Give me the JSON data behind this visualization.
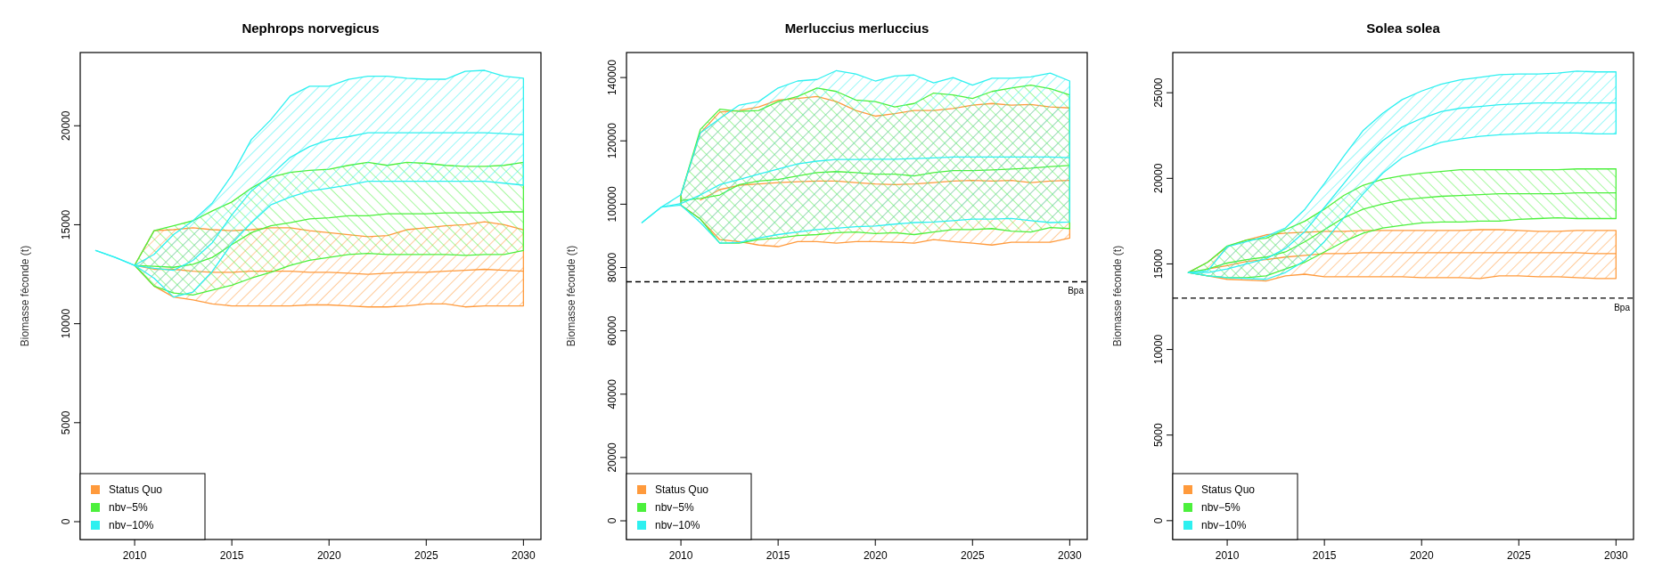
{
  "chart_data": [
    {
      "type": "line",
      "title": "Nephrops norvegicus",
      "ylabel": "Biomasse féconde (t)",
      "x": [
        2008,
        2009,
        2010,
        2011,
        2012,
        2013,
        2014,
        2015,
        2016,
        2017,
        2018,
        2019,
        2020,
        2021,
        2022,
        2023,
        2024,
        2025,
        2026,
        2027,
        2028,
        2029,
        2030
      ],
      "xlim": [
        2007.2,
        2030.9
      ],
      "xticks": [
        2010,
        2015,
        2020,
        2025,
        2030
      ],
      "ylim": [
        -900,
        23700
      ],
      "yticks": [
        0,
        5000,
        10000,
        15000,
        20000
      ],
      "grid": false,
      "legend": "bottom left",
      "marker": "none",
      "line_style": "solid",
      "series": [
        {
          "name": "Status Quo",
          "color": "#ff9a3c",
          "values": [
            null,
            null,
            12950,
            12750,
            12750,
            12650,
            12600,
            12600,
            12650,
            12650,
            12650,
            12600,
            12600,
            12550,
            12500,
            12550,
            12600,
            12600,
            12650,
            12700,
            12750,
            12700,
            12650
          ],
          "lower": [
            null,
            null,
            12950,
            11900,
            11350,
            11200,
            11000,
            10900,
            10900,
            10900,
            10900,
            10950,
            10950,
            10900,
            10850,
            10850,
            10900,
            11000,
            11000,
            10850,
            10900,
            10900,
            10900
          ],
          "upper": [
            null,
            null,
            12950,
            14700,
            14750,
            14850,
            14750,
            14700,
            14750,
            14850,
            14850,
            14700,
            14600,
            14500,
            14400,
            14450,
            14750,
            14850,
            14950,
            15000,
            15150,
            15000,
            14750
          ]
        },
        {
          "name": "nbv−5%",
          "color": "#4cf03c",
          "values": [
            null,
            null,
            12950,
            12900,
            12850,
            13000,
            13350,
            14000,
            14600,
            14950,
            15100,
            15300,
            15350,
            15450,
            15450,
            15550,
            15550,
            15550,
            15600,
            15600,
            15600,
            15650,
            15650
          ],
          "lower": [
            null,
            null,
            12950,
            11900,
            11550,
            11450,
            11700,
            11950,
            12300,
            12600,
            12950,
            13200,
            13350,
            13500,
            13550,
            13500,
            13500,
            13500,
            13500,
            13450,
            13500,
            13500,
            13700
          ],
          "upper": [
            null,
            null,
            12950,
            14700,
            14950,
            15200,
            15700,
            16150,
            16850,
            17400,
            17650,
            17750,
            17800,
            18000,
            18150,
            18000,
            18150,
            18100,
            18000,
            17950,
            17950,
            18000,
            18150
          ]
        },
        {
          "name": "nbv−10%",
          "color": "#2ef0f0",
          "values": [
            13700,
            13350,
            12950,
            12800,
            12700,
            13200,
            14100,
            15500,
            16700,
            17500,
            18400,
            18950,
            19300,
            19450,
            19650,
            19650,
            19650,
            19650,
            19650,
            19650,
            19650,
            19600,
            19550
          ],
          "lower": [
            13700,
            13350,
            12950,
            12300,
            11350,
            11600,
            12650,
            14050,
            15100,
            16000,
            16400,
            16700,
            16850,
            17000,
            17200,
            17200,
            17200,
            17200,
            17200,
            17200,
            17200,
            17100,
            17000
          ],
          "upper": [
            13700,
            13350,
            12950,
            13500,
            14500,
            15200,
            16100,
            17500,
            19300,
            20300,
            21500,
            22000,
            22000,
            22350,
            22500,
            22500,
            22400,
            22350,
            22350,
            22750,
            22800,
            22500,
            22400
          ]
        }
      ]
    },
    {
      "type": "line",
      "title": "Merluccius merluccius",
      "ylabel": "Biomasse féconde (t)",
      "x": [
        2008,
        2009,
        2010,
        2011,
        2012,
        2013,
        2014,
        2015,
        2016,
        2017,
        2018,
        2019,
        2020,
        2021,
        2022,
        2023,
        2024,
        2025,
        2026,
        2027,
        2028,
        2029,
        2030
      ],
      "xlim": [
        2007.2,
        2030.9
      ],
      "xticks": [
        2010,
        2015,
        2020,
        2025,
        2030
      ],
      "ylim": [
        -5900,
        147900
      ],
      "yticks": [
        0,
        20000,
        40000,
        60000,
        80000,
        100000,
        120000,
        140000
      ],
      "grid": false,
      "legend": "bottom left",
      "marker": "none",
      "line_style": "solid",
      "ref_lines": [
        {
          "axis": "y",
          "value": 75500,
          "label": "Bpa",
          "color": "#000000",
          "line_style": "dashed"
        }
      ],
      "series": [
        {
          "name": "Status Quo",
          "color": "#ff9a3c",
          "values": [
            null,
            null,
            null,
            101300,
            104600,
            106000,
            106400,
            106800,
            107100,
            107300,
            107300,
            106800,
            106400,
            106200,
            106400,
            106800,
            107300,
            107500,
            107300,
            107500,
            106800,
            107300,
            107500
          ],
          "lower": [
            null,
            null,
            99700,
            95300,
            88800,
            88200,
            87100,
            86600,
            88200,
            88200,
            87700,
            88200,
            88200,
            88000,
            87700,
            88800,
            88200,
            87700,
            87100,
            88000,
            88000,
            88000,
            89300
          ],
          "upper": [
            null,
            null,
            103000,
            122500,
            129100,
            129600,
            130700,
            132900,
            133400,
            134000,
            132400,
            129600,
            127800,
            128600,
            129600,
            129600,
            130200,
            131300,
            131800,
            131300,
            131500,
            130700,
            130400
          ]
        },
        {
          "name": "nbv−5%",
          "color": "#4cf03c",
          "values": [
            null,
            null,
            101200,
            101800,
            102900,
            106200,
            107300,
            107800,
            108900,
            110000,
            110300,
            110000,
            109500,
            109500,
            108900,
            110000,
            110600,
            110600,
            110800,
            111100,
            111400,
            111900,
            112200
          ],
          "lower": [
            null,
            null,
            99700,
            95300,
            87700,
            87700,
            88800,
            89300,
            90100,
            90400,
            91000,
            91200,
            90700,
            91000,
            90400,
            91200,
            92000,
            92000,
            92300,
            91500,
            91200,
            92600,
            92300
          ],
          "upper": [
            null,
            null,
            103000,
            123600,
            130000,
            129300,
            129600,
            132400,
            134000,
            136700,
            135600,
            132900,
            132400,
            130700,
            131800,
            135100,
            134500,
            133400,
            135600,
            136700,
            137600,
            136500,
            134500
          ]
        },
        {
          "name": "nbv−10%",
          "color": "#2ef0f0",
          "values": [
            94200,
            99100,
            100200,
            102900,
            106200,
            107800,
            109500,
            111100,
            112700,
            113600,
            114100,
            114100,
            114200,
            114200,
            114400,
            114600,
            114900,
            114900,
            114900,
            114900,
            114900,
            114900,
            114700
          ],
          "lower": [
            94200,
            99100,
            99700,
            94200,
            87700,
            87900,
            89300,
            90400,
            91200,
            92000,
            92400,
            92900,
            93100,
            93700,
            94200,
            94400,
            94800,
            95300,
            95300,
            95500,
            94800,
            94200,
            94400
          ],
          "upper": [
            94200,
            99100,
            103000,
            122500,
            127000,
            131300,
            132400,
            136700,
            138900,
            139400,
            142200,
            141100,
            138900,
            140500,
            140800,
            138300,
            140000,
            137600,
            139800,
            139800,
            140200,
            141400,
            138900
          ]
        }
      ]
    },
    {
      "type": "line",
      "title": "Solea solea",
      "ylabel": "Biomasse féconde (t)",
      "x": [
        2008,
        2009,
        2010,
        2011,
        2012,
        2013,
        2014,
        2015,
        2016,
        2017,
        2018,
        2019,
        2020,
        2021,
        2022,
        2023,
        2024,
        2025,
        2026,
        2027,
        2028,
        2029,
        2030
      ],
      "xlim": [
        2007.2,
        2030.9
      ],
      "xticks": [
        2010,
        2015,
        2020,
        2025,
        2030
      ],
      "ylim": [
        -1100,
        27350
      ],
      "yticks": [
        0,
        5000,
        10000,
        15000,
        20000,
        25000
      ],
      "grid": false,
      "legend": "bottom left",
      "marker": "none",
      "line_style": "solid",
      "ref_lines": [
        {
          "axis": "y",
          "value": 13000,
          "label": "Bpa",
          "color": "#000000",
          "line_style": "dashed"
        }
      ],
      "series": [
        {
          "name": "Status Quo",
          "color": "#ff9a3c",
          "values": [
            null,
            14700,
            14900,
            15150,
            15250,
            15400,
            15500,
            15600,
            15600,
            15650,
            15650,
            15650,
            15650,
            15650,
            15650,
            15650,
            15650,
            15650,
            15650,
            15650,
            15650,
            15600,
            15600
          ],
          "lower": [
            14500,
            14300,
            14100,
            14050,
            14000,
            14300,
            14400,
            14250,
            14250,
            14250,
            14250,
            14250,
            14200,
            14200,
            14200,
            14150,
            14300,
            14300,
            14250,
            14250,
            14200,
            14150,
            14150
          ],
          "upper": [
            14500,
            15100,
            16000,
            16400,
            16700,
            16800,
            16850,
            16900,
            16900,
            16950,
            16950,
            16950,
            16950,
            16950,
            16950,
            17000,
            17000,
            16950,
            16900,
            16900,
            16950,
            16950,
            16950
          ]
        },
        {
          "name": "nbv−5%",
          "color": "#4cf03c",
          "values": [
            14500,
            14700,
            15050,
            15250,
            15400,
            15700,
            16300,
            17000,
            17700,
            18200,
            18500,
            18750,
            18850,
            18950,
            19000,
            19050,
            19100,
            19100,
            19100,
            19100,
            19150,
            19150,
            19150
          ],
          "lower": [
            14500,
            14300,
            14200,
            14200,
            14300,
            14700,
            15100,
            15700,
            16300,
            16800,
            17100,
            17250,
            17400,
            17450,
            17450,
            17500,
            17500,
            17600,
            17650,
            17700,
            17650,
            17650,
            17650
          ],
          "upper": [
            14500,
            15100,
            16050,
            16400,
            16500,
            17000,
            17500,
            18200,
            19000,
            19600,
            19950,
            20150,
            20300,
            20400,
            20500,
            20500,
            20500,
            20500,
            20500,
            20500,
            20550,
            20550,
            20550
          ]
        },
        {
          "name": "nbv−10%",
          "color": "#2ef0f0",
          "values": [
            14500,
            14500,
            14700,
            15000,
            15300,
            15900,
            16900,
            18300,
            19700,
            21100,
            22200,
            23000,
            23500,
            23900,
            24100,
            24200,
            24300,
            24350,
            24400,
            24400,
            24400,
            24400,
            24400
          ],
          "lower": [
            14500,
            14300,
            14200,
            14150,
            14100,
            14500,
            15200,
            16300,
            17700,
            19100,
            20300,
            21200,
            21700,
            22100,
            22300,
            22450,
            22550,
            22600,
            22650,
            22650,
            22650,
            22600,
            22600
          ],
          "upper": [
            14500,
            14600,
            16000,
            16300,
            16600,
            17100,
            18200,
            19700,
            21300,
            22800,
            23800,
            24600,
            25100,
            25500,
            25760,
            25900,
            26060,
            26100,
            26100,
            26150,
            26260,
            26220,
            26220
          ]
        }
      ]
    }
  ]
}
